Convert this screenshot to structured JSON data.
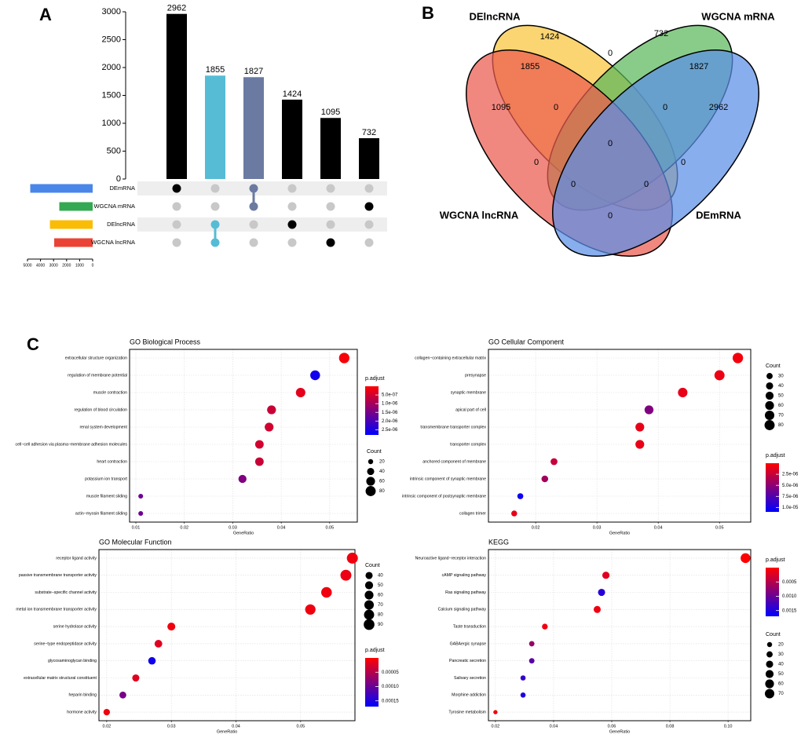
{
  "panel_labels": [
    "A",
    "B",
    "C"
  ],
  "chart_data": [
    {
      "type": "upset",
      "values": [
        2962,
        1855,
        1827,
        1424,
        1095,
        732
      ],
      "colors": [
        "#000000",
        "#56bcd6",
        "#6b7aa1",
        "#000000",
        "#000000",
        "#000000"
      ],
      "ylim": [
        0,
        3000
      ],
      "yticks": [
        0,
        500,
        1000,
        1500,
        2000,
        2500,
        3000
      ],
      "sets": [
        {
          "name": "DEmRNA",
          "color": "#4a86e8",
          "size": 4789
        },
        {
          "name": "WGCNA mRNA",
          "color": "#34a853",
          "size": 2559
        },
        {
          "name": "DElncRNA",
          "color": "#fbbc05",
          "size": 3279
        },
        {
          "name": "WGCNA lncRNA",
          "color": "#ea4335",
          "size": 2950
        }
      ],
      "members": [
        [
          0
        ],
        [
          2,
          3
        ],
        [
          0,
          1
        ],
        [
          2
        ],
        [
          3
        ],
        [
          1
        ]
      ],
      "set_xlim": [
        5000,
        0
      ],
      "set_xticks": [
        5000,
        4000,
        3000,
        2000,
        1000,
        0
      ]
    },
    {
      "type": "venn",
      "sets": [
        {
          "name": "DElncRNA",
          "color": "#f9c53a"
        },
        {
          "name": "WGCNA mRNA",
          "color": "#5cb85c"
        },
        {
          "name": "WGCNA lncRNA",
          "color": "#ec5a4f"
        },
        {
          "name": "DEmRNA",
          "color": "#5b8fe8"
        }
      ],
      "values": [
        1424,
        732,
        0,
        1855,
        1827,
        1095,
        0,
        0,
        2962,
        0,
        0,
        0,
        0,
        0,
        0
      ]
    },
    {
      "type": "dot",
      "title": "GO Biological Process",
      "categories": [
        "extracellular structure organization",
        "regulation of membrane potential",
        "muscle contraction",
        "regulation of blood circulation",
        "renal system development",
        "cell−cell adhesion via plasma−membrane adhesion molecules",
        "heart contraction",
        "potassium ion transport",
        "muscle filament sliding",
        "actin−myosin filament sliding"
      ],
      "values": [
        0.053,
        0.047,
        0.044,
        0.038,
        0.0375,
        0.0355,
        0.0355,
        0.032,
        0.011,
        0.011
      ],
      "counts": [
        85,
        75,
        70,
        61,
        60,
        57,
        57,
        51,
        18,
        18
      ],
      "p_adjust": [
        1e-07,
        2.6e-06,
        3e-07,
        6e-07,
        5e-07,
        5e-07,
        6e-07,
        1.4e-06,
        1.6e-06,
        1.6e-06
      ],
      "xlabel": "GeneRatio",
      "xlim": [
        0.0087,
        0.0557
      ],
      "xticks": [
        0.01,
        0.02,
        0.03,
        0.04,
        0.05
      ],
      "grid": true,
      "size_legend_title": "Count",
      "size_ticks": [
        20,
        40,
        60,
        80
      ],
      "color_legend_title": "p.adjust",
      "clim": [
        0,
        2.8e-06
      ],
      "color_scale": [
        "#ff0000",
        "#0000ff"
      ],
      "cticks": [
        {
          "value": 5e-07,
          "label": "5.0e-07"
        },
        {
          "value": 1e-06,
          "label": "1.0e-06"
        },
        {
          "value": 1.5e-06,
          "label": "1.5e-06"
        },
        {
          "value": 2e-06,
          "label": "2.0e-06"
        },
        {
          "value": 2.5e-06,
          "label": "2.5e-06"
        }
      ]
    },
    {
      "type": "dot",
      "title": "GO Cellular Component",
      "categories": [
        "collagen−containing extracellular matrix",
        "presynapse",
        "synaptic membrane",
        "apical part of cell",
        "transmembrane transporter complex",
        "transporter complex",
        "anchored component of membrane",
        "intrinsic component of synaptic membrane",
        "intrinsic component of postsynaptic membrane",
        "collagen trimer"
      ],
      "values": [
        0.053,
        0.05,
        0.044,
        0.0385,
        0.037,
        0.037,
        0.023,
        0.0215,
        0.0175,
        0.0165
      ],
      "counts": [
        85,
        80,
        71,
        62,
        60,
        60,
        37,
        35,
        28,
        27
      ],
      "p_adjust": [
        5e-07,
        8e-07,
        1e-06,
        5.5e-06,
        1e-06,
        1e-06,
        2.5e-06,
        4e-06,
        1.05e-05,
        1e-06
      ],
      "xlabel": "GeneRatio",
      "xlim": [
        0.0123,
        0.0551
      ],
      "xticks": [
        0.02,
        0.03,
        0.04,
        0.05
      ],
      "grid": true,
      "size_legend_title": "Count",
      "size_ticks": [
        30,
        40,
        50,
        60,
        70,
        80
      ],
      "color_legend_title": "p.adjust",
      "clim": [
        0,
        1.1e-05
      ],
      "color_scale": [
        "#ff0000",
        "#0000ff"
      ],
      "cticks": [
        {
          "value": 2.5e-06,
          "label": "2.5e-06"
        },
        {
          "value": 5e-06,
          "label": "5.0e-06"
        },
        {
          "value": 7.5e-06,
          "label": "7.5e-06"
        },
        {
          "value": 1e-05,
          "label": "1.0e-05"
        }
      ]
    },
    {
      "type": "dot",
      "title": "GO Molecular Function",
      "categories": [
        "receptor ligand activity",
        "passive transmembrane transporter activity",
        "substrate−specific channel activity",
        "metal ion transmembrane transporter activity",
        "serine hydrolase activity",
        "serine−type endopeptidase activity",
        "glycosaminoglycan binding",
        "extracellular matrix structural constituent",
        "heparin binding",
        "hormone activity"
      ],
      "values": [
        0.058,
        0.057,
        0.054,
        0.0515,
        0.03,
        0.028,
        0.027,
        0.0245,
        0.0225,
        0.02
      ],
      "counts": [
        95,
        93,
        88,
        84,
        49,
        46,
        44,
        40,
        37,
        33
      ],
      "p_adjust": [
        1e-05,
        1.2e-05,
        1e-05,
        1e-05,
        1e-05,
        2e-05,
        0.00016,
        2e-05,
        9e-05,
        1e-05
      ],
      "xlabel": "GeneRatio",
      "xlim": [
        0.0188,
        0.0584
      ],
      "xticks": [
        0.02,
        0.03,
        0.04,
        0.05
      ],
      "grid": true,
      "size_legend_title": "Count",
      "size_ticks": [
        40,
        50,
        60,
        70,
        80,
        90
      ],
      "color_legend_title": "p.adjust",
      "clim": [
        0,
        0.00017
      ],
      "color_scale": [
        "#ff0000",
        "#0000ff"
      ],
      "cticks": [
        5e-05,
        {
          "value": 0.0001,
          "label": "0.00010"
        },
        0.00015
      ]
    },
    {
      "type": "dot",
      "title": "KEGG",
      "categories": [
        "Neuroactive ligand−receptor interaction",
        "cAMP signaling pathway",
        "Ras signaling pathway",
        "Calcium signaling pathway",
        "Taste transduction",
        "GABAergic synapse",
        "Pancreatic secretion",
        "Salivary secretion",
        "Morphine addiction",
        "Tyrosine metabolism"
      ],
      "values": [
        0.106,
        0.058,
        0.0565,
        0.055,
        0.037,
        0.0325,
        0.0325,
        0.0295,
        0.0295,
        0.02
      ],
      "counts": [
        75,
        41,
        40,
        39,
        26,
        23,
        23,
        21,
        21,
        14
      ],
      "p_adjust": [
        1e-05,
        0.0002,
        0.00145,
        0.0001,
        0.0001,
        0.0007,
        0.0011,
        0.00135,
        0.0015,
        0.0001
      ],
      "xlabel": "GeneRatio",
      "xlim": [
        0.0176,
        0.1078
      ],
      "xticks": [
        0.02,
        0.04,
        0.06,
        0.08,
        {
          "value": 0.1,
          "label": "0.10"
        }
      ],
      "grid": true,
      "size_legend_title": "Count",
      "size_ticks": [
        20,
        30,
        40,
        50,
        60,
        70
      ],
      "color_legend_title": "p.adjust",
      "clim": [
        0,
        0.0017
      ],
      "color_scale": [
        "#ff0000",
        "#0000ff"
      ],
      "cticks": [
        0.0005,
        {
          "value": 0.001,
          "label": "0.0010"
        },
        0.0015
      ]
    }
  ]
}
